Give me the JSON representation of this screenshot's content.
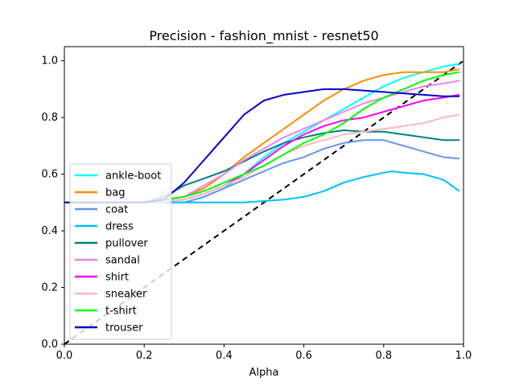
{
  "chart_data": {
    "type": "line",
    "title": "Precision - fashion_mnist - resnet50",
    "xlabel": "Alpha",
    "ylabel": "",
    "xlim": [
      0,
      1
    ],
    "ylim": [
      0,
      1.05
    ],
    "xticks": [
      "0.0",
      "0.2",
      "0.4",
      "0.6",
      "0.8",
      "1.0"
    ],
    "yticks": [
      "0.0",
      "0.2",
      "0.4",
      "0.6",
      "0.8",
      "1.0"
    ],
    "grid": false,
    "legend_position": "center-left",
    "reference_line": {
      "style": "dashed",
      "color": "#000000",
      "from": [
        0,
        0
      ],
      "to": [
        1,
        1
      ]
    },
    "series": [
      {
        "name": "ankle-boot",
        "color": "#00ffff",
        "x": [
          0,
          0.2,
          0.3,
          0.35,
          0.4,
          0.45,
          0.5,
          0.55,
          0.6,
          0.65,
          0.7,
          0.75,
          0.8,
          0.85,
          0.9,
          0.95,
          0.99
        ],
        "y": [
          0.5,
          0.5,
          0.5,
          0.52,
          0.55,
          0.6,
          0.66,
          0.71,
          0.75,
          0.79,
          0.83,
          0.87,
          0.91,
          0.94,
          0.96,
          0.98,
          0.99
        ]
      },
      {
        "name": "bag",
        "color": "#ff8c00",
        "x": [
          0,
          0.2,
          0.3,
          0.35,
          0.4,
          0.45,
          0.5,
          0.55,
          0.6,
          0.65,
          0.7,
          0.75,
          0.8,
          0.85,
          0.9,
          0.95,
          0.99
        ],
        "y": [
          0.5,
          0.5,
          0.52,
          0.55,
          0.6,
          0.66,
          0.71,
          0.76,
          0.81,
          0.86,
          0.9,
          0.93,
          0.95,
          0.96,
          0.96,
          0.96,
          0.97
        ]
      },
      {
        "name": "coat",
        "color": "#6495ed",
        "x": [
          0,
          0.2,
          0.3,
          0.35,
          0.4,
          0.45,
          0.5,
          0.55,
          0.6,
          0.65,
          0.7,
          0.75,
          0.8,
          0.85,
          0.9,
          0.95,
          0.99
        ],
        "y": [
          0.5,
          0.5,
          0.5,
          0.52,
          0.55,
          0.58,
          0.61,
          0.64,
          0.66,
          0.69,
          0.71,
          0.72,
          0.72,
          0.7,
          0.68,
          0.66,
          0.655
        ]
      },
      {
        "name": "dress",
        "color": "#00bfff",
        "x": [
          0,
          0.2,
          0.3,
          0.4,
          0.45,
          0.5,
          0.55,
          0.6,
          0.65,
          0.7,
          0.75,
          0.8,
          0.82,
          0.85,
          0.9,
          0.95,
          0.99
        ],
        "y": [
          0.5,
          0.5,
          0.5,
          0.5,
          0.5,
          0.505,
          0.51,
          0.52,
          0.54,
          0.57,
          0.59,
          0.605,
          0.61,
          0.605,
          0.6,
          0.58,
          0.54
        ]
      },
      {
        "name": "pullover",
        "color": "#008080",
        "x": [
          0,
          0.2,
          0.25,
          0.3,
          0.35,
          0.4,
          0.45,
          0.5,
          0.55,
          0.6,
          0.65,
          0.7,
          0.75,
          0.8,
          0.85,
          0.9,
          0.95,
          0.99
        ],
        "y": [
          0.5,
          0.5,
          0.52,
          0.56,
          0.585,
          0.61,
          0.645,
          0.68,
          0.71,
          0.73,
          0.745,
          0.755,
          0.75,
          0.75,
          0.74,
          0.73,
          0.72,
          0.72
        ]
      },
      {
        "name": "sandal",
        "color": "#ee82ee",
        "x": [
          0,
          0.2,
          0.3,
          0.35,
          0.4,
          0.45,
          0.5,
          0.55,
          0.6,
          0.65,
          0.7,
          0.75,
          0.8,
          0.85,
          0.9,
          0.95,
          0.99
        ],
        "y": [
          0.5,
          0.5,
          0.52,
          0.56,
          0.6,
          0.65,
          0.69,
          0.73,
          0.76,
          0.79,
          0.82,
          0.85,
          0.87,
          0.89,
          0.91,
          0.92,
          0.93
        ]
      },
      {
        "name": "shirt",
        "color": "#ff00ff",
        "x": [
          0,
          0.2,
          0.3,
          0.35,
          0.4,
          0.45,
          0.5,
          0.55,
          0.6,
          0.65,
          0.7,
          0.75,
          0.8,
          0.85,
          0.9,
          0.95,
          0.99
        ],
        "y": [
          0.5,
          0.5,
          0.51,
          0.53,
          0.56,
          0.6,
          0.65,
          0.7,
          0.74,
          0.77,
          0.79,
          0.8,
          0.82,
          0.84,
          0.86,
          0.87,
          0.88
        ]
      },
      {
        "name": "sneaker",
        "color": "#ffb6c1",
        "x": [
          0,
          0.2,
          0.3,
          0.35,
          0.4,
          0.45,
          0.5,
          0.55,
          0.6,
          0.65,
          0.7,
          0.75,
          0.8,
          0.85,
          0.9,
          0.95,
          0.99
        ],
        "y": [
          0.5,
          0.5,
          0.51,
          0.53,
          0.56,
          0.59,
          0.63,
          0.67,
          0.7,
          0.72,
          0.74,
          0.75,
          0.76,
          0.77,
          0.78,
          0.8,
          0.81
        ]
      },
      {
        "name": "t-shirt",
        "color": "#00ff00",
        "x": [
          0,
          0.2,
          0.3,
          0.35,
          0.4,
          0.45,
          0.5,
          0.55,
          0.6,
          0.65,
          0.7,
          0.75,
          0.8,
          0.85,
          0.9,
          0.95,
          0.99
        ],
        "y": [
          0.5,
          0.5,
          0.52,
          0.54,
          0.57,
          0.6,
          0.63,
          0.67,
          0.71,
          0.74,
          0.78,
          0.83,
          0.87,
          0.9,
          0.93,
          0.95,
          0.96
        ]
      },
      {
        "name": "trouser",
        "color": "#0000cd",
        "x": [
          0,
          0.2,
          0.25,
          0.3,
          0.35,
          0.4,
          0.45,
          0.5,
          0.55,
          0.6,
          0.65,
          0.7,
          0.75,
          0.8,
          0.85,
          0.9,
          0.95,
          0.99
        ],
        "y": [
          0.5,
          0.5,
          0.51,
          0.57,
          0.65,
          0.73,
          0.81,
          0.86,
          0.88,
          0.89,
          0.9,
          0.9,
          0.895,
          0.89,
          0.885,
          0.88,
          0.875,
          0.875
        ]
      }
    ]
  }
}
